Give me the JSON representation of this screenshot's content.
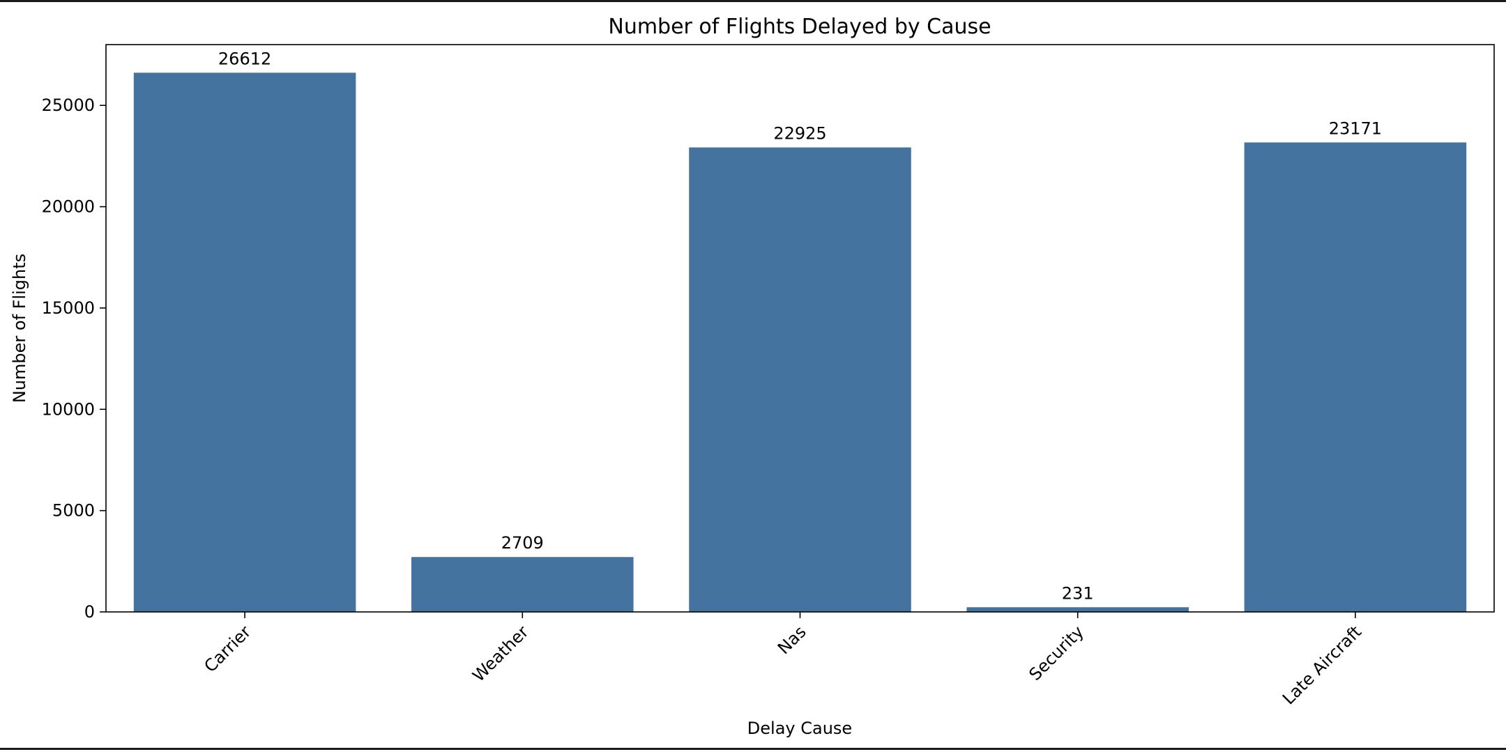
{
  "chart_data": {
    "type": "bar",
    "title": "Number of Flights Delayed by Cause",
    "xlabel": "Delay Cause",
    "ylabel": "Number of Flights",
    "categories": [
      "Carrier",
      "Weather",
      "Nas",
      "Security",
      "Late Aircraft"
    ],
    "values": [
      26612,
      2709,
      22925,
      231,
      23171
    ],
    "data_labels": [
      "26612",
      "2709",
      "22925",
      "231",
      "23171"
    ],
    "ylim": [
      0,
      28000
    ],
    "yticks": [
      0,
      5000,
      10000,
      15000,
      20000,
      25000
    ],
    "ytick_labels": [
      "0",
      "5000",
      "10000",
      "15000",
      "20000",
      "25000"
    ],
    "xtick_rotation_deg": 45,
    "grid": false,
    "legend": "none",
    "bar_color": "#4573a0"
  }
}
